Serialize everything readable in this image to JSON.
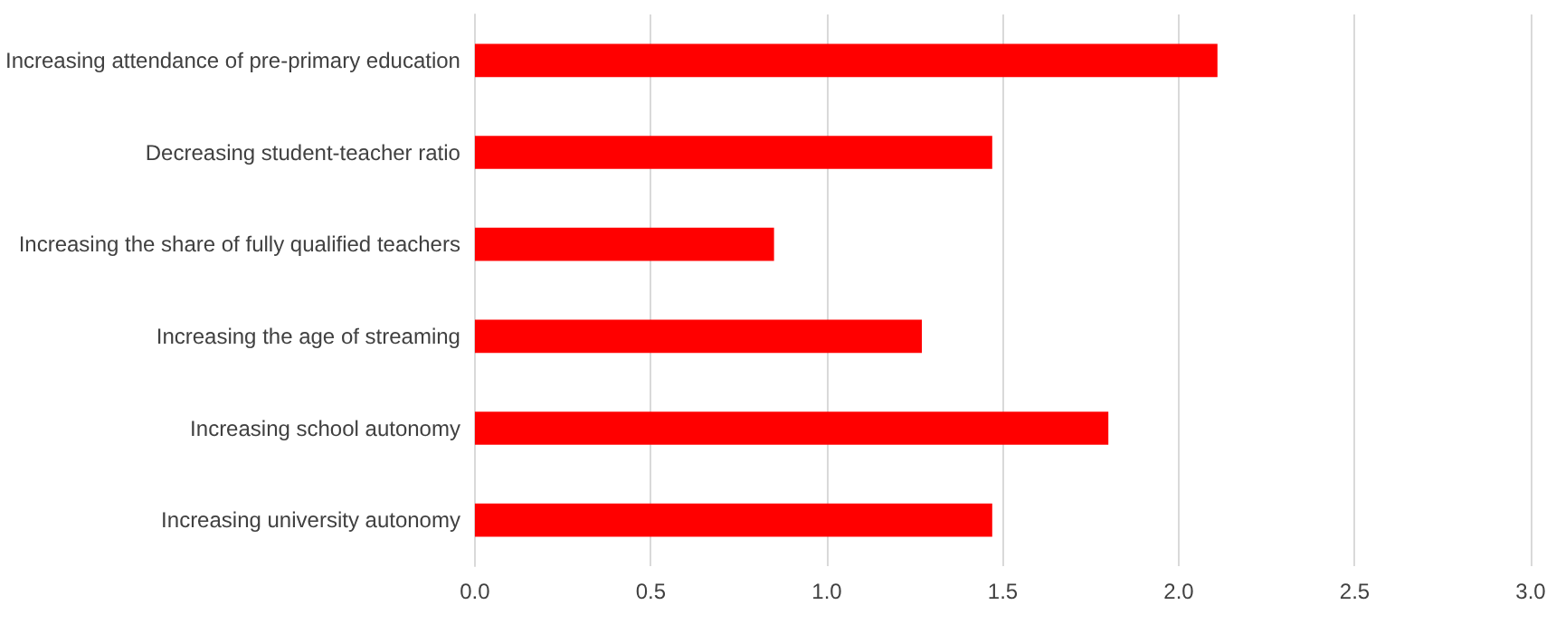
{
  "chart_data": {
    "type": "bar",
    "orientation": "horizontal",
    "categories": [
      "Increasing attendance of pre-primary education",
      "Decreasing student-teacher ratio",
      "Increasing the share of fully qualified teachers",
      "Increasing the age of streaming",
      "Increasing school autonomy",
      "Increasing university autonomy"
    ],
    "values": [
      2.11,
      1.47,
      0.85,
      1.27,
      1.8,
      1.47
    ],
    "color": "#ff0000",
    "xlim": [
      0,
      3
    ],
    "xticks": [
      {
        "value": 0,
        "label": "0.0"
      },
      {
        "value": 0.5,
        "label": "0.5"
      },
      {
        "value": 1,
        "label": "1.0"
      },
      {
        "value": 1.5,
        "label": "1.5"
      },
      {
        "value": 2,
        "label": "2.0"
      },
      {
        "value": 2.5,
        "label": "2.5"
      },
      {
        "value": 3,
        "label": "3.0"
      }
    ],
    "grid": "x"
  }
}
